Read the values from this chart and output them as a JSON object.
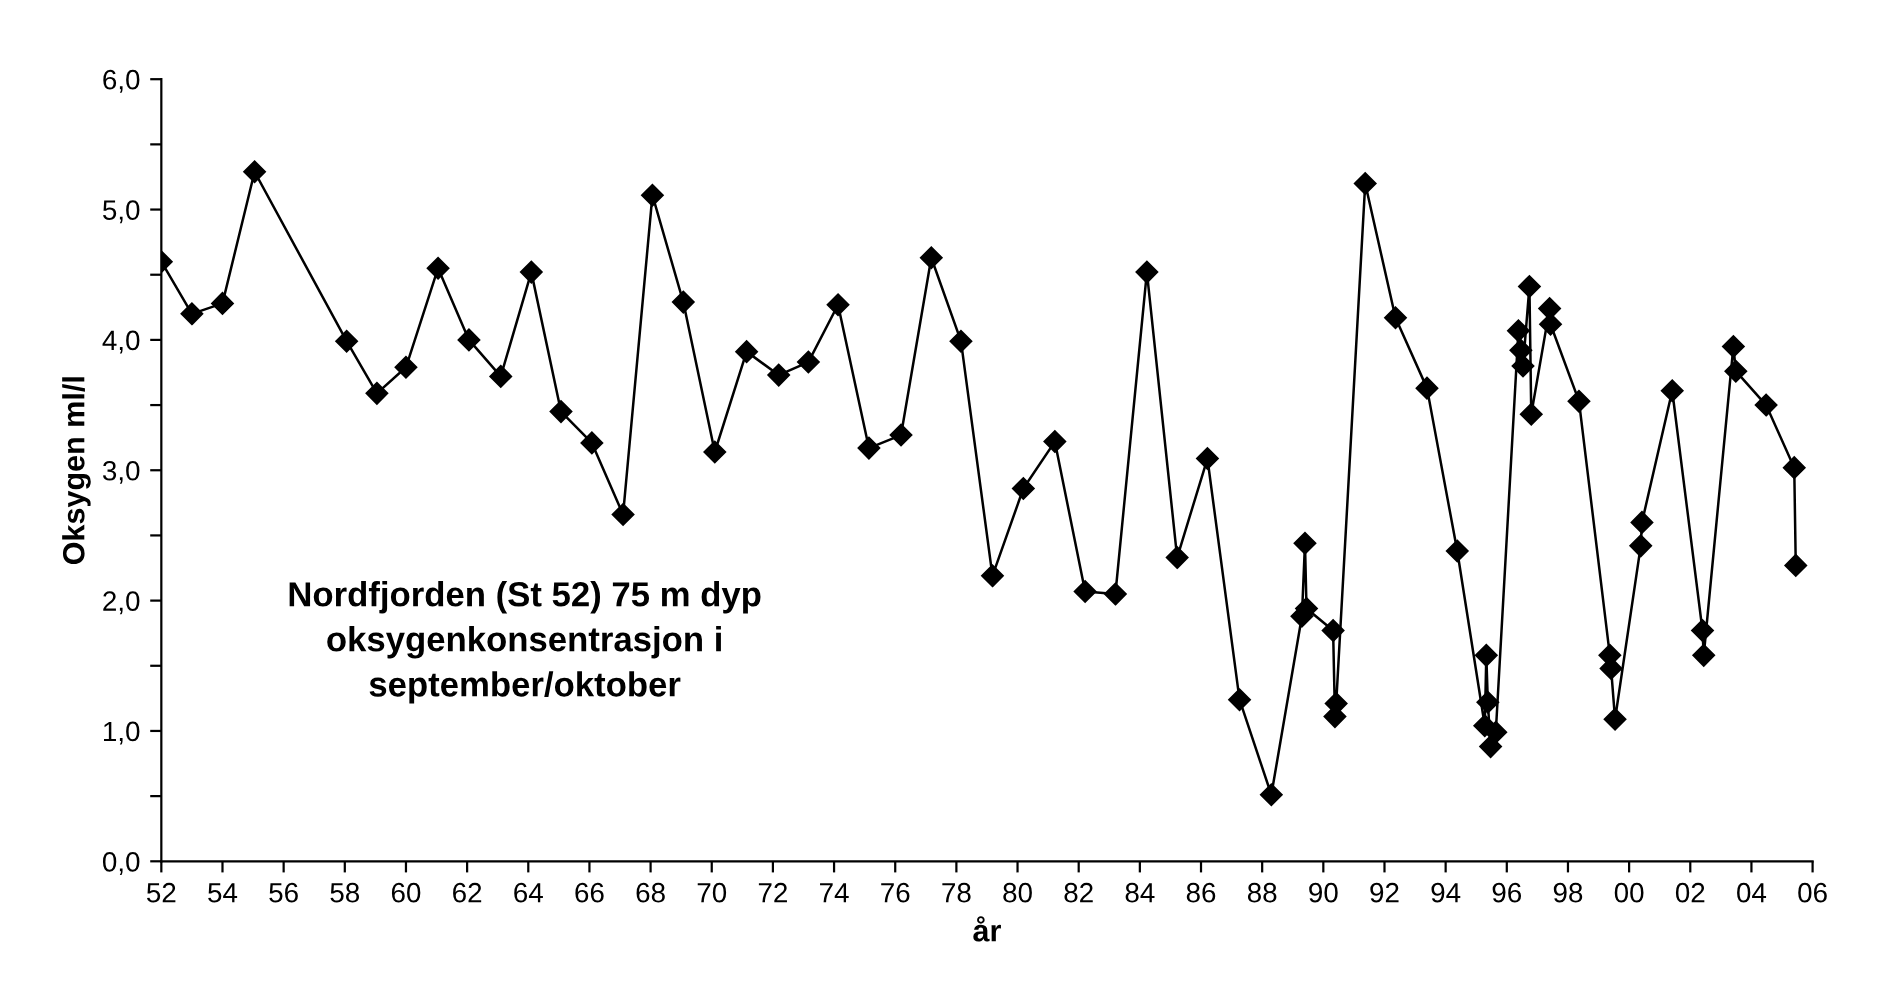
{
  "chart_data": {
    "type": "line",
    "xlabel": "år",
    "ylabel": "Oksygen ml/l",
    "annotations": [
      "Nordfjorden (St 52) 75 m dyp\noksygenkonsentrasjon i\nseptember/oktober"
    ],
    "x": [
      1952.0,
      1953.0,
      1954.0,
      1955.05,
      1958.06,
      1959.05,
      1960.0,
      1961.05,
      1962.06,
      1963.1,
      1964.1,
      1965.07,
      1966.08,
      1967.1,
      1968.06,
      1969.07,
      1970.1,
      1971.14,
      1972.19,
      1973.16,
      1974.13,
      1975.14,
      1976.19,
      1977.18,
      1978.15,
      1979.18,
      1980.19,
      1981.22,
      1982.21,
      1983.2,
      1984.23,
      1985.22,
      1986.21,
      1987.26,
      1988.3,
      1989.3,
      1989.4,
      1989.45,
      1990.32,
      1990.38,
      1990.42,
      1991.37,
      1992.36,
      1993.39,
      1994.38,
      1995.28,
      1995.33,
      1995.38,
      1995.47,
      1995.64,
      1996.38,
      1996.46,
      1996.53,
      1996.74,
      1996.8,
      1997.4,
      1997.43,
      1998.36,
      1999.37,
      1999.41,
      1999.54,
      2000.38,
      2000.42,
      2001.41,
      2002.4,
      2002.44,
      2003.41,
      2003.49,
      2004.48,
      2005.4,
      2005.45
    ],
    "series": [
      {
        "color": "#000000",
        "values": [
          4.6,
          4.2,
          4.28,
          5.29,
          3.99,
          3.59,
          3.79,
          4.55,
          4.0,
          3.72,
          4.52,
          3.45,
          3.21,
          2.66,
          5.11,
          4.29,
          3.14,
          3.91,
          3.73,
          3.83,
          4.27,
          3.17,
          3.27,
          4.63,
          3.99,
          2.19,
          2.86,
          3.22,
          2.07,
          2.05,
          4.52,
          2.33,
          3.09,
          1.24,
          0.51,
          1.88,
          2.44,
          1.94,
          1.77,
          1.11,
          1.21,
          5.2,
          4.17,
          3.63,
          2.38,
          1.04,
          1.58,
          1.22,
          0.88,
          0.99,
          4.07,
          3.92,
          3.8,
          4.41,
          3.43,
          4.24,
          4.12,
          3.53,
          1.58,
          1.48,
          1.09,
          2.42,
          2.6,
          3.61,
          1.77,
          1.58,
          3.95,
          3.76,
          3.5,
          3.02,
          2.27
        ]
      }
    ],
    "marker": "diamond",
    "line_style": "solid",
    "grid": false,
    "legend": false,
    "xlim": [
      1952,
      2006
    ],
    "xticks": [
      {
        "value": 1952,
        "label": "52"
      },
      {
        "value": 1954,
        "label": "54"
      },
      {
        "value": 1956,
        "label": "56"
      },
      {
        "value": 1958,
        "label": "58"
      },
      {
        "value": 1960,
        "label": "60"
      },
      {
        "value": 1962,
        "label": "62"
      },
      {
        "value": 1964,
        "label": "64"
      },
      {
        "value": 1966,
        "label": "66"
      },
      {
        "value": 1968,
        "label": "68"
      },
      {
        "value": 1970,
        "label": "70"
      },
      {
        "value": 1972,
        "label": "72"
      },
      {
        "value": 1974,
        "label": "74"
      },
      {
        "value": 1976,
        "label": "76"
      },
      {
        "value": 1978,
        "label": "78"
      },
      {
        "value": 1980,
        "label": "80"
      },
      {
        "value": 1982,
        "label": "82"
      },
      {
        "value": 1984,
        "label": "84"
      },
      {
        "value": 1986,
        "label": "86"
      },
      {
        "value": 1988,
        "label": "88"
      },
      {
        "value": 1990,
        "label": "90"
      },
      {
        "value": 1992,
        "label": "92"
      },
      {
        "value": 1994,
        "label": "94"
      },
      {
        "value": 1996,
        "label": "96"
      },
      {
        "value": 1998,
        "label": "98"
      },
      {
        "value": 2000,
        "label": "00"
      },
      {
        "value": 2002,
        "label": "02"
      },
      {
        "value": 2004,
        "label": "04"
      },
      {
        "value": 2006,
        "label": "06"
      }
    ],
    "ylim": [
      0,
      6
    ],
    "yticks": [
      {
        "value": 0,
        "label": "0,0"
      },
      {
        "value": 0.5,
        "label": null
      },
      {
        "value": 1,
        "label": "1,0"
      },
      {
        "value": 1.5,
        "label": null
      },
      {
        "value": 2,
        "label": "2,0"
      },
      {
        "value": 2.5,
        "label": null
      },
      {
        "value": 3,
        "label": "3,0"
      },
      {
        "value": 3.5,
        "label": null
      },
      {
        "value": 4,
        "label": "4,0"
      },
      {
        "value": 4.5,
        "label": null
      },
      {
        "value": 5,
        "label": "5,0"
      },
      {
        "value": 5.5,
        "label": null
      },
      {
        "value": 6,
        "label": "6,0"
      }
    ]
  }
}
